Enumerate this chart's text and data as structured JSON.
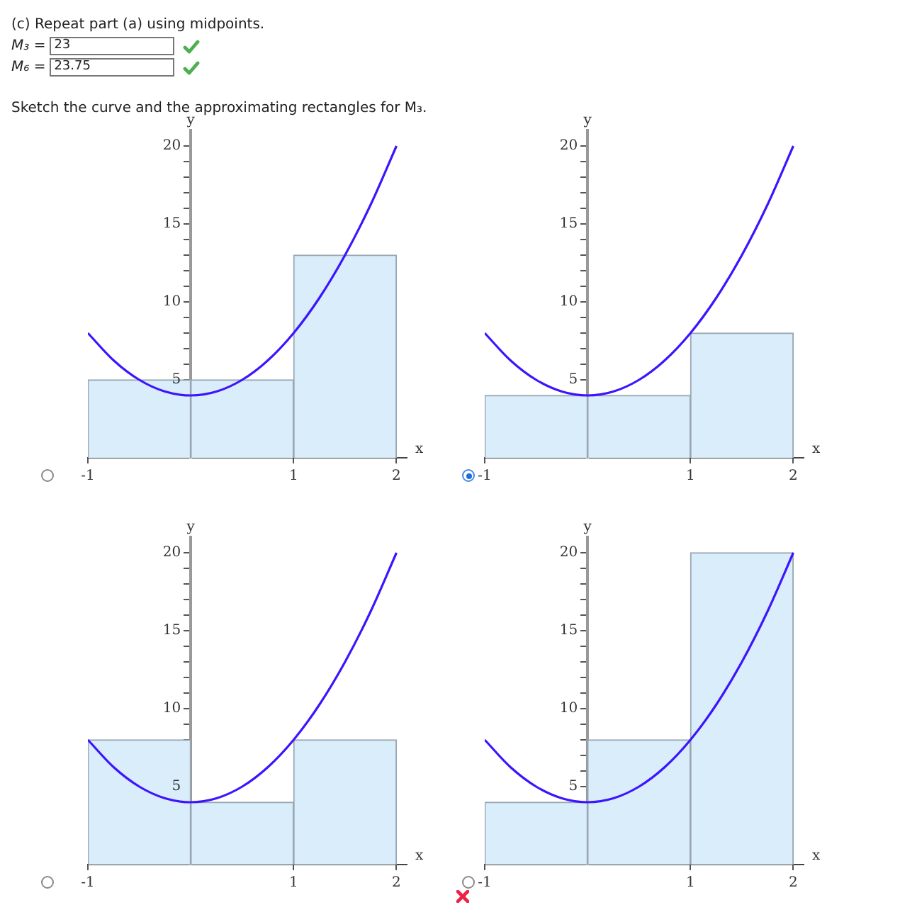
{
  "chart_data": [
    {
      "type": "histogram",
      "annotations": [
        "(c) Repeat part (a) using midpoints.",
        "M₃ =",
        "23",
        "M₆ =",
        "23.75",
        "Sketch the curve and the approximating rectangles for M₃."
      ],
      "xlabel": "x",
      "ylabel": "y",
      "xlim": [
        -1,
        2.1
      ],
      "ylim": [
        0,
        21
      ],
      "xticks": [
        -1,
        1,
        2
      ],
      "yticks": [
        {
          "value": 1,
          "label": null
        },
        {
          "value": 2,
          "label": null
        },
        {
          "value": 3,
          "label": null
        },
        {
          "value": 4,
          "label": null
        },
        5,
        {
          "value": 6,
          "label": null
        },
        {
          "value": 7,
          "label": null
        },
        {
          "value": 8,
          "label": null
        },
        {
          "value": 9,
          "label": null
        },
        10,
        {
          "value": 11,
          "label": null
        },
        {
          "value": 12,
          "label": null
        },
        {
          "value": 13,
          "label": null
        },
        {
          "value": 14,
          "label": null
        },
        15,
        {
          "value": 16,
          "label": null
        },
        {
          "value": 17,
          "label": null
        },
        {
          "value": 18,
          "label": null
        },
        {
          "value": 19,
          "label": null
        },
        20
      ],
      "grid": false,
      "legend": false,
      "series": [
        {
          "type": "histogram",
          "bins": [
            -1,
            0,
            1,
            2
          ],
          "values": [
            5,
            5,
            13
          ],
          "color": "#d9edfb"
        },
        {
          "type": "line",
          "x": [
            -1,
            -0.75,
            -0.5,
            -0.25,
            0,
            0.25,
            0.5,
            0.75,
            1,
            1.25,
            1.5,
            1.75,
            2
          ],
          "values": [
            8,
            6.25,
            5,
            4.25,
            4,
            4.25,
            5,
            6.25,
            8,
            10.25,
            13,
            16.25,
            20
          ],
          "color": "#3d14ff"
        }
      ]
    },
    {
      "type": "histogram",
      "xlabel": "x",
      "ylabel": "y",
      "xlim": [
        -1,
        2.1
      ],
      "ylim": [
        0,
        21
      ],
      "xticks": [
        -1,
        1,
        2
      ],
      "yticks": [
        {
          "value": 1,
          "label": null
        },
        {
          "value": 2,
          "label": null
        },
        {
          "value": 3,
          "label": null
        },
        {
          "value": 4,
          "label": null
        },
        5,
        {
          "value": 6,
          "label": null
        },
        {
          "value": 7,
          "label": null
        },
        {
          "value": 8,
          "label": null
        },
        {
          "value": 9,
          "label": null
        },
        10,
        {
          "value": 11,
          "label": null
        },
        {
          "value": 12,
          "label": null
        },
        {
          "value": 13,
          "label": null
        },
        {
          "value": 14,
          "label": null
        },
        15,
        {
          "value": 16,
          "label": null
        },
        {
          "value": 17,
          "label": null
        },
        {
          "value": 18,
          "label": null
        },
        {
          "value": 19,
          "label": null
        },
        20
      ],
      "grid": false,
      "legend": false,
      "series": [
        {
          "type": "histogram",
          "bins": [
            -1,
            0,
            1,
            2
          ],
          "values": [
            4,
            4,
            8
          ],
          "color": "#d9edfb"
        },
        {
          "type": "line",
          "x": [
            -1,
            -0.75,
            -0.5,
            -0.25,
            0,
            0.25,
            0.5,
            0.75,
            1,
            1.25,
            1.5,
            1.75,
            2
          ],
          "values": [
            8,
            6.25,
            5,
            4.25,
            4,
            4.25,
            5,
            6.25,
            8,
            10.25,
            13,
            16.25,
            20
          ],
          "color": "#3d14ff"
        }
      ]
    },
    {
      "type": "histogram",
      "xlabel": "x",
      "ylabel": "y",
      "xlim": [
        -1,
        2.1
      ],
      "ylim": [
        0,
        21
      ],
      "xticks": [
        -1,
        1,
        2
      ],
      "yticks": [
        {
          "value": 1,
          "label": null
        },
        {
          "value": 2,
          "label": null
        },
        {
          "value": 3,
          "label": null
        },
        {
          "value": 4,
          "label": null
        },
        5,
        {
          "value": 6,
          "label": null
        },
        {
          "value": 7,
          "label": null
        },
        {
          "value": 8,
          "label": null
        },
        {
          "value": 9,
          "label": null
        },
        10,
        {
          "value": 11,
          "label": null
        },
        {
          "value": 12,
          "label": null
        },
        {
          "value": 13,
          "label": null
        },
        {
          "value": 14,
          "label": null
        },
        15,
        {
          "value": 16,
          "label": null
        },
        {
          "value": 17,
          "label": null
        },
        {
          "value": 18,
          "label": null
        },
        {
          "value": 19,
          "label": null
        },
        20
      ],
      "grid": false,
      "legend": false,
      "series": [
        {
          "type": "histogram",
          "bins": [
            -1,
            0,
            1,
            2
          ],
          "values": [
            8,
            4,
            8
          ],
          "color": "#d9edfb"
        },
        {
          "type": "line",
          "x": [
            -1,
            -0.75,
            -0.5,
            -0.25,
            0,
            0.25,
            0.5,
            0.75,
            1,
            1.25,
            1.5,
            1.75,
            2
          ],
          "values": [
            8,
            6.25,
            5,
            4.25,
            4,
            4.25,
            5,
            6.25,
            8,
            10.25,
            13,
            16.25,
            20
          ],
          "color": "#3d14ff"
        }
      ]
    },
    {
      "type": "histogram",
      "xlabel": "x",
      "ylabel": "y",
      "xlim": [
        -1,
        2.1
      ],
      "ylim": [
        0,
        21
      ],
      "xticks": [
        -1,
        1,
        2
      ],
      "yticks": [
        {
          "value": 1,
          "label": null
        },
        {
          "value": 2,
          "label": null
        },
        {
          "value": 3,
          "label": null
        },
        {
          "value": 4,
          "label": null
        },
        5,
        {
          "value": 6,
          "label": null
        },
        {
          "value": 7,
          "label": null
        },
        {
          "value": 8,
          "label": null
        },
        {
          "value": 9,
          "label": null
        },
        10,
        {
          "value": 11,
          "label": null
        },
        {
          "value": 12,
          "label": null
        },
        {
          "value": 13,
          "label": null
        },
        {
          "value": 14,
          "label": null
        },
        15,
        {
          "value": 16,
          "label": null
        },
        {
          "value": 17,
          "label": null
        },
        {
          "value": 18,
          "label": null
        },
        {
          "value": 19,
          "label": null
        },
        20
      ],
      "grid": false,
      "legend": false,
      "series": [
        {
          "type": "histogram",
          "bins": [
            -1,
            0,
            1,
            2
          ],
          "values": [
            4,
            8,
            20
          ],
          "color": "#d9edfb"
        },
        {
          "type": "line",
          "x": [
            -1,
            -0.75,
            -0.5,
            -0.25,
            0,
            0.25,
            0.5,
            0.75,
            1,
            1.25,
            1.5,
            1.75,
            2
          ],
          "values": [
            8,
            6.25,
            5,
            4.25,
            4,
            4.25,
            5,
            6.25,
            8,
            10.25,
            13,
            16.25,
            20
          ],
          "color": "#3d14ff"
        }
      ]
    }
  ]
}
